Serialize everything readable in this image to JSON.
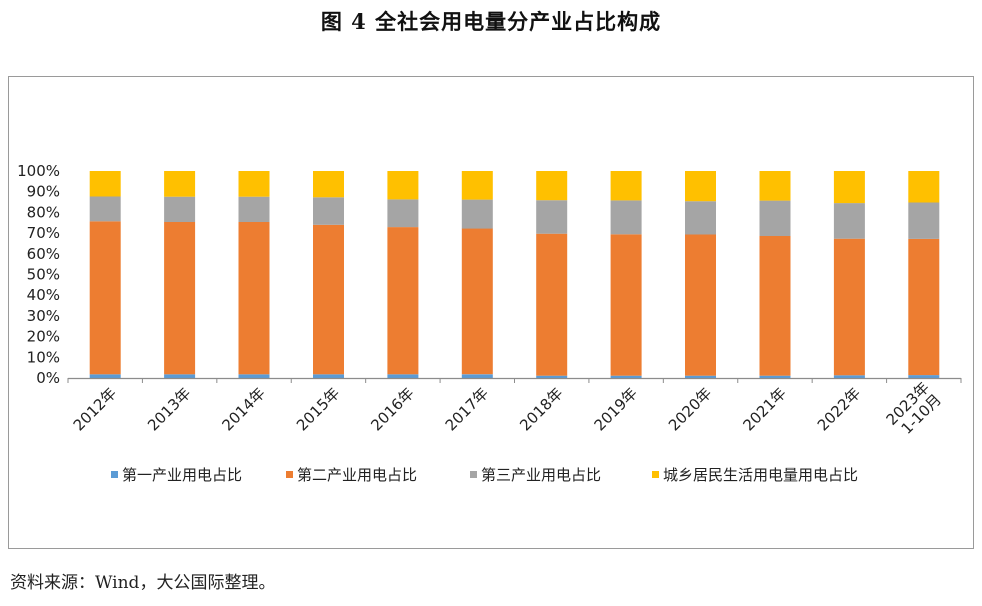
{
  "figure": {
    "title": "图 4  全社会用电量分产业占比构成",
    "source": "资料来源：Wind，大公国际整理。"
  },
  "chart_data": {
    "type": "bar",
    "stacked": true,
    "percent": true,
    "categories": [
      "2012年",
      "2013年",
      "2014年",
      "2015年",
      "2016年",
      "2017年",
      "2018年",
      "2019年",
      "2020年",
      "2021年",
      "2022年",
      "2023年 1-10月"
    ],
    "category_lines": [
      [
        "2012年"
      ],
      [
        "2013年"
      ],
      [
        "2014年"
      ],
      [
        "2015年"
      ],
      [
        "2016年"
      ],
      [
        "2017年"
      ],
      [
        "2018年"
      ],
      [
        "2019年"
      ],
      [
        "2020年"
      ],
      [
        "2021年"
      ],
      [
        "2022年"
      ],
      [
        "2023年",
        "1-10月"
      ]
    ],
    "series": [
      {
        "name": "第一产业用电占比",
        "color": "#5b9bd5",
        "values": [
          1.8,
          1.8,
          1.8,
          1.8,
          1.8,
          1.8,
          1.1,
          1.1,
          1.1,
          1.1,
          1.3,
          1.4
        ]
      },
      {
        "name": "第二产业用电占比",
        "color": "#ed7d31",
        "values": [
          73.9,
          73.6,
          73.6,
          72.2,
          71.1,
          70.4,
          68.6,
          68.3,
          68.2,
          67.5,
          66.0,
          65.8
        ]
      },
      {
        "name": "第三产业用电占比",
        "color": "#a5a5a5",
        "values": [
          12.0,
          12.2,
          12.2,
          13.3,
          13.4,
          14.0,
          16.2,
          16.4,
          16.1,
          17.1,
          17.2,
          17.6
        ]
      },
      {
        "name": "城乡居民生活用电量用电占比",
        "color": "#ffc000",
        "values": [
          12.3,
          12.4,
          12.4,
          12.7,
          13.7,
          13.8,
          14.1,
          14.2,
          14.6,
          14.3,
          15.5,
          15.2
        ]
      }
    ],
    "y_ticks": [
      "0%",
      "10%",
      "20%",
      "30%",
      "40%",
      "50%",
      "60%",
      "70%",
      "80%",
      "90%",
      "100%"
    ],
    "ylim": [
      0,
      100
    ],
    "grid": false,
    "legend_position": "bottom"
  }
}
